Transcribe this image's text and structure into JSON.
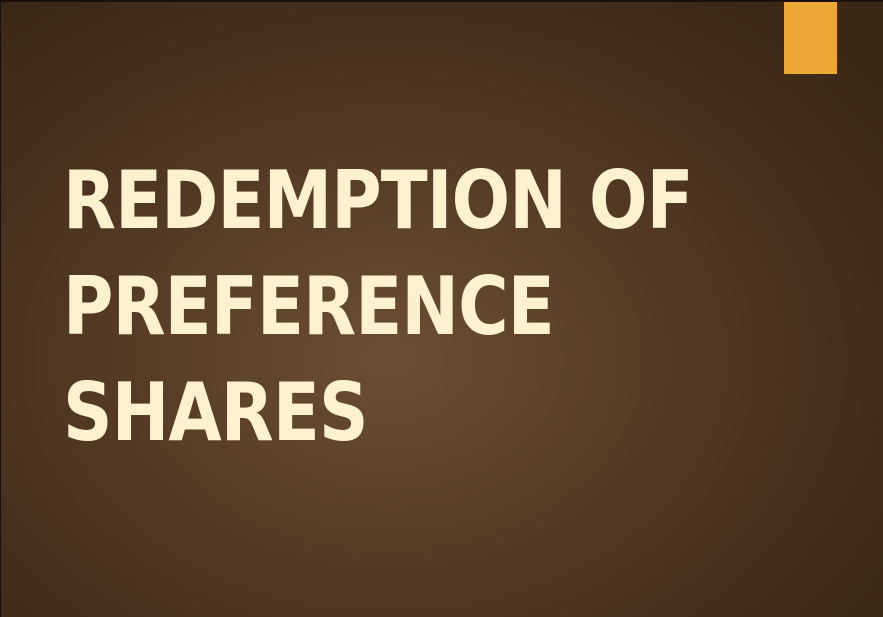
{
  "slide": {
    "title_lines": [
      "REDEMPTION OF",
      "PREFERENCE",
      "SHARES"
    ]
  },
  "colors": {
    "background": "#5a3f28",
    "accent": "#eda734",
    "title_text": "#fdf1cf"
  }
}
